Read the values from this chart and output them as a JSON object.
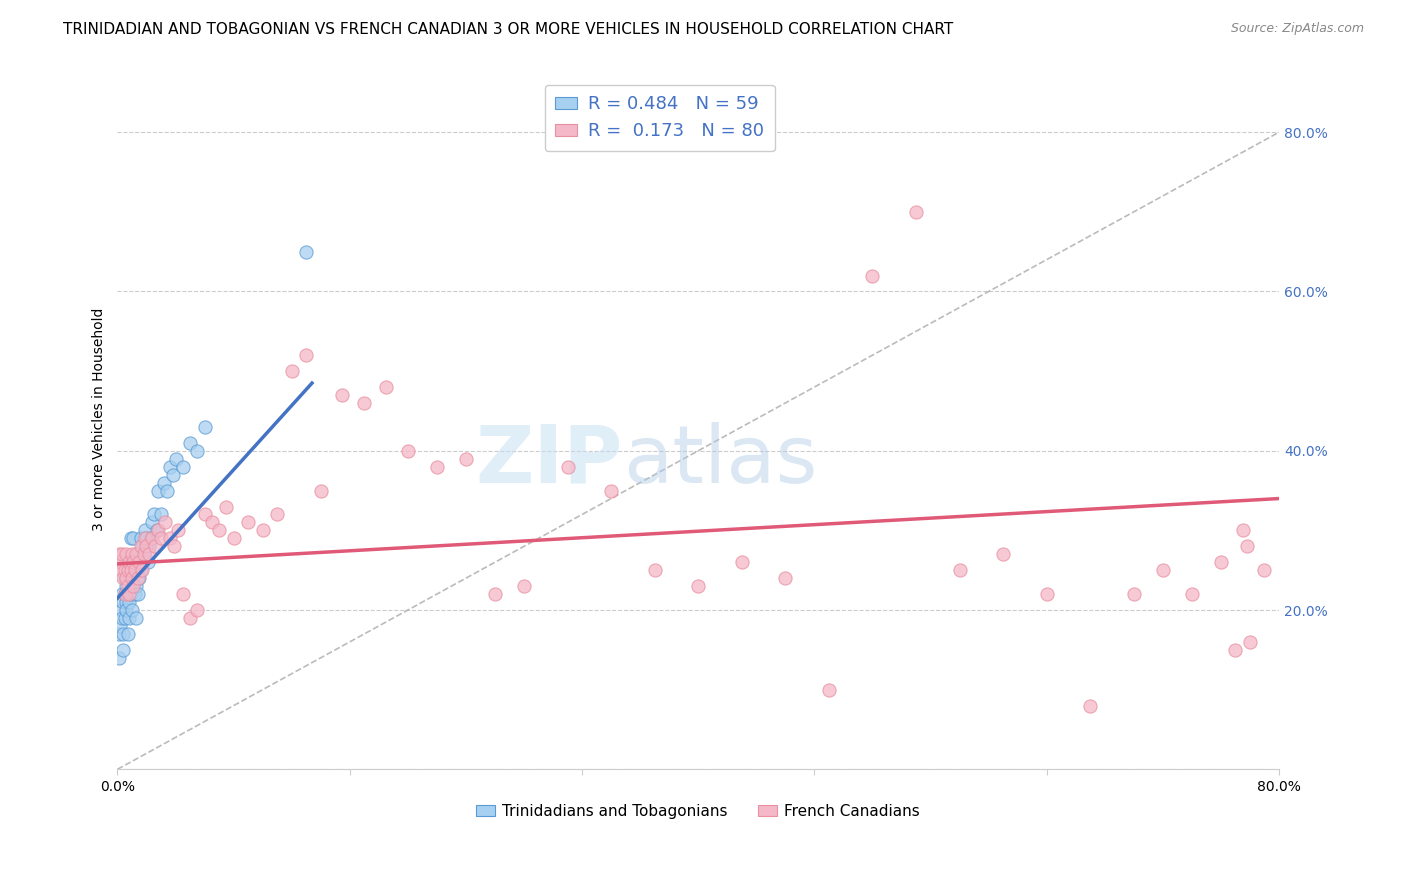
{
  "title": "TRINIDADIAN AND TOBAGONIAN VS FRENCH CANADIAN 3 OR MORE VEHICLES IN HOUSEHOLD CORRELATION CHART",
  "source": "Source: ZipAtlas.com",
  "ylabel": "3 or more Vehicles in Household",
  "watermark_zip": "ZIP",
  "watermark_atlas": "atlas",
  "xlim": [
    0.0,
    0.8
  ],
  "ylim": [
    0.0,
    0.88
  ],
  "yticks": [
    0.0,
    0.2,
    0.4,
    0.6,
    0.8
  ],
  "ytick_labels": [
    "",
    "20.0%",
    "40.0%",
    "60.0%",
    "80.0%"
  ],
  "xtick_positions": [
    0.0,
    0.16,
    0.32,
    0.48,
    0.64,
    0.8
  ],
  "xtick_labels": [
    "0.0%",
    "",
    "",
    "",
    "",
    "80.0%"
  ],
  "legend_text1": "R = 0.484   N = 59",
  "legend_text2": "R =  0.173   N = 80",
  "legend_label1": "Trinidadians and Tobagonians",
  "legend_label2": "French Canadians",
  "color_blue_fill": "#a8d0f0",
  "color_blue_edge": "#5b9bd5",
  "color_blue_line": "#4472c4",
  "color_pink_fill": "#f4b8c8",
  "color_pink_edge": "#e88fa0",
  "color_pink_line": "#e05a78",
  "color_diagonal": "#aaaaaa",
  "blue_x": [
    0.001,
    0.001,
    0.002,
    0.003,
    0.003,
    0.003,
    0.004,
    0.004,
    0.004,
    0.005,
    0.005,
    0.005,
    0.006,
    0.006,
    0.006,
    0.007,
    0.007,
    0.008,
    0.008,
    0.008,
    0.009,
    0.009,
    0.009,
    0.01,
    0.01,
    0.011,
    0.011,
    0.012,
    0.012,
    0.013,
    0.013,
    0.014,
    0.014,
    0.015,
    0.015,
    0.016,
    0.016,
    0.017,
    0.018,
    0.019,
    0.02,
    0.021,
    0.022,
    0.023,
    0.024,
    0.025,
    0.027,
    0.028,
    0.03,
    0.032,
    0.034,
    0.036,
    0.038,
    0.04,
    0.045,
    0.05,
    0.055,
    0.06,
    0.13
  ],
  "blue_y": [
    0.14,
    0.17,
    0.18,
    0.2,
    0.22,
    0.19,
    0.21,
    0.17,
    0.15,
    0.22,
    0.24,
    0.19,
    0.21,
    0.23,
    0.2,
    0.22,
    0.17,
    0.19,
    0.21,
    0.24,
    0.22,
    0.26,
    0.29,
    0.2,
    0.24,
    0.26,
    0.29,
    0.22,
    0.25,
    0.19,
    0.23,
    0.22,
    0.25,
    0.24,
    0.27,
    0.25,
    0.29,
    0.28,
    0.27,
    0.3,
    0.29,
    0.26,
    0.28,
    0.29,
    0.31,
    0.32,
    0.3,
    0.35,
    0.32,
    0.36,
    0.35,
    0.38,
    0.37,
    0.39,
    0.38,
    0.41,
    0.4,
    0.43,
    0.65
  ],
  "pink_x": [
    0.001,
    0.002,
    0.003,
    0.003,
    0.004,
    0.005,
    0.005,
    0.006,
    0.006,
    0.007,
    0.007,
    0.008,
    0.008,
    0.009,
    0.01,
    0.01,
    0.011,
    0.011,
    0.012,
    0.013,
    0.014,
    0.015,
    0.016,
    0.017,
    0.018,
    0.019,
    0.02,
    0.022,
    0.024,
    0.026,
    0.028,
    0.03,
    0.033,
    0.036,
    0.039,
    0.042,
    0.045,
    0.05,
    0.055,
    0.06,
    0.065,
    0.07,
    0.075,
    0.08,
    0.09,
    0.1,
    0.11,
    0.12,
    0.13,
    0.14,
    0.155,
    0.17,
    0.185,
    0.2,
    0.22,
    0.24,
    0.26,
    0.28,
    0.31,
    0.34,
    0.37,
    0.4,
    0.43,
    0.46,
    0.49,
    0.52,
    0.55,
    0.58,
    0.61,
    0.64,
    0.67,
    0.7,
    0.72,
    0.74,
    0.76,
    0.77,
    0.775,
    0.778,
    0.78,
    0.79
  ],
  "pink_y": [
    0.27,
    0.26,
    0.25,
    0.27,
    0.24,
    0.25,
    0.22,
    0.24,
    0.27,
    0.23,
    0.25,
    0.22,
    0.26,
    0.25,
    0.24,
    0.27,
    0.23,
    0.26,
    0.25,
    0.27,
    0.24,
    0.26,
    0.28,
    0.25,
    0.27,
    0.29,
    0.28,
    0.27,
    0.29,
    0.28,
    0.3,
    0.29,
    0.31,
    0.29,
    0.28,
    0.3,
    0.22,
    0.19,
    0.2,
    0.32,
    0.31,
    0.3,
    0.33,
    0.29,
    0.31,
    0.3,
    0.32,
    0.5,
    0.52,
    0.35,
    0.47,
    0.46,
    0.48,
    0.4,
    0.38,
    0.39,
    0.22,
    0.23,
    0.38,
    0.35,
    0.25,
    0.23,
    0.26,
    0.24,
    0.1,
    0.62,
    0.7,
    0.25,
    0.27,
    0.22,
    0.08,
    0.22,
    0.25,
    0.22,
    0.26,
    0.15,
    0.3,
    0.28,
    0.16,
    0.25
  ],
  "blue_line_x": [
    0.0,
    0.134
  ],
  "blue_line_y": [
    0.215,
    0.485
  ],
  "pink_line_x": [
    0.0,
    0.8
  ],
  "pink_line_y": [
    0.258,
    0.34
  ],
  "diag_line_x": [
    0.0,
    0.8
  ],
  "diag_line_y": [
    0.0,
    0.8
  ],
  "bg_color": "#ffffff",
  "grid_color": "#cccccc",
  "title_fontsize": 11,
  "source_fontsize": 9,
  "axis_label_fontsize": 10,
  "tick_fontsize": 10,
  "legend_fontsize": 13
}
